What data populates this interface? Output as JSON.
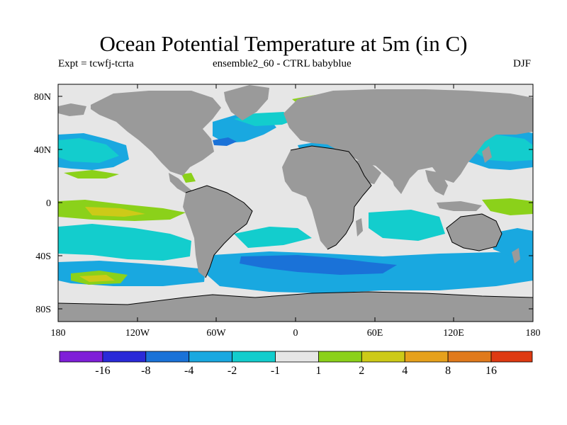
{
  "title": "Ocean Potential Temperature at 5m (in C)",
  "subtitle_left": "Expt = tcwfj-tcrta",
  "subtitle_center": "ensemble2_60 - CTRL babyblue",
  "subtitle_right": "DJF",
  "map": {
    "lat_ticks": [
      "80N",
      "40N",
      "0",
      "40S",
      "80S"
    ],
    "lon_ticks": [
      "180",
      "120W",
      "60W",
      "0",
      "60E",
      "120E",
      "180"
    ],
    "colors": {
      "land": "#9a9a9a",
      "ocean_neutral": "#e6e6e6",
      "frame": "#000000"
    }
  },
  "colorbar": {
    "colors": [
      "#7f1fd8",
      "#2a2ad8",
      "#1a72d8",
      "#19a8e0",
      "#13cdcd",
      "#e6e6e6",
      "#8bd11a",
      "#cdca18",
      "#e6a11c",
      "#e07a1c",
      "#de3a12"
    ],
    "labels": [
      "-16",
      "-8",
      "-4",
      "-2",
      "-1",
      "1",
      "2",
      "4",
      "8",
      "16"
    ]
  }
}
